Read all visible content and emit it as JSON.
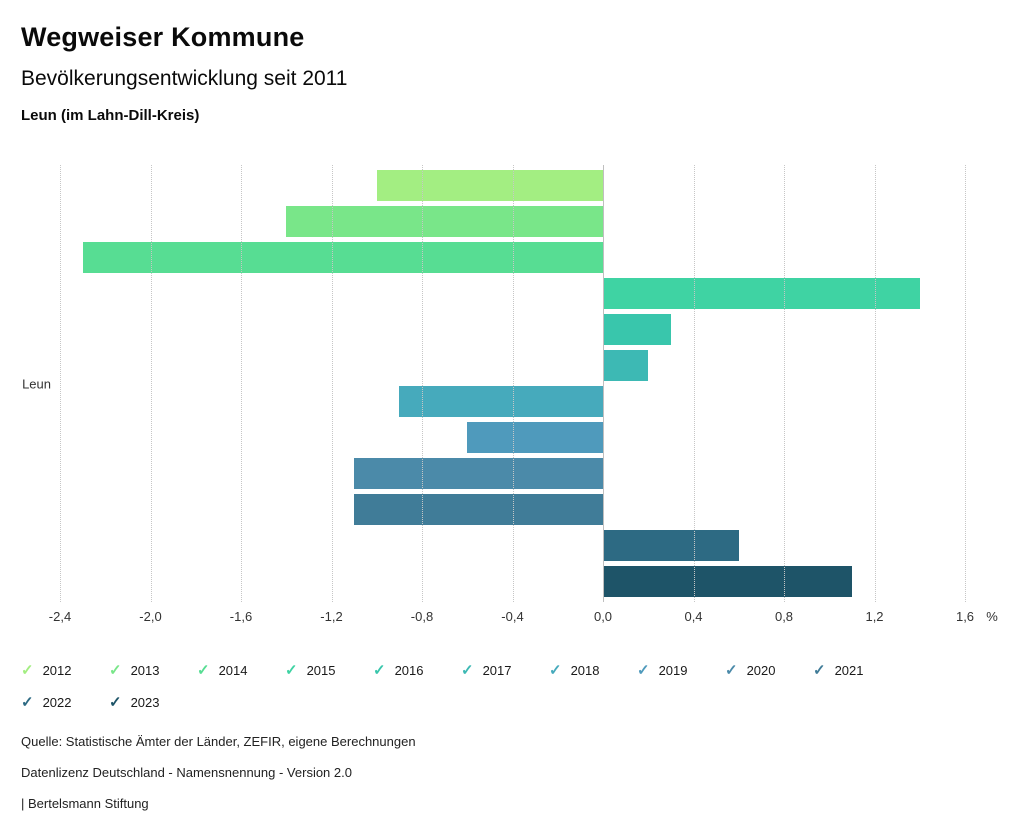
{
  "header": {
    "title": "Wegweiser Kommune",
    "subtitle": "Bevölkerungsentwicklung seit 2011",
    "region": "Leun (im Lahn-Dill-Kreis)"
  },
  "chart_data": {
    "type": "bar",
    "orientation": "horizontal",
    "title": "Bevölkerungsentwicklung seit 2011",
    "category_label": "Leun",
    "xlabel": "%",
    "xlim": [
      -2.4,
      1.6
    ],
    "ticks": [
      -2.4,
      -2.0,
      -1.6,
      -1.2,
      -0.8,
      -0.4,
      0,
      0.4,
      0.8,
      1.2,
      1.6
    ],
    "tick_labels": [
      "-2,4",
      "-2,0",
      "-1,6",
      "-1,2",
      "-0,8",
      "-0,4",
      "0,0",
      "0,4",
      "0,8",
      "1,2",
      "1,6"
    ],
    "grid": "dotted-vertical",
    "legend_position": "bottom",
    "series": [
      {
        "name": "2012",
        "value": -1.0,
        "color": "#a3ee82"
      },
      {
        "name": "2013",
        "value": -1.4,
        "color": "#79e689"
      },
      {
        "name": "2014",
        "value": -2.3,
        "color": "#57dd93"
      },
      {
        "name": "2015",
        "value": 1.4,
        "color": "#3fd3a3"
      },
      {
        "name": "2016",
        "value": 0.3,
        "color": "#39c6ac"
      },
      {
        "name": "2017",
        "value": 0.2,
        "color": "#3db9b4"
      },
      {
        "name": "2018",
        "value": -0.9,
        "color": "#46aabc"
      },
      {
        "name": "2019",
        "value": -0.6,
        "color": "#4f9abc"
      },
      {
        "name": "2020",
        "value": -1.1,
        "color": "#4b8aa9"
      },
      {
        "name": "2021",
        "value": -1.1,
        "color": "#407c98"
      },
      {
        "name": "2022",
        "value": 0.6,
        "color": "#2d6a83"
      },
      {
        "name": "2023",
        "value": 1.1,
        "color": "#1e5468"
      }
    ]
  },
  "legend": {
    "checkmark": "✓"
  },
  "footer": {
    "source": "Quelle: Statistische Ämter der Länder, ZEFIR, eigene Berechnungen",
    "license": "Datenlizenz Deutschland - Namensnennung - Version 2.0",
    "attribution": "| Bertelsmann Stiftung"
  }
}
